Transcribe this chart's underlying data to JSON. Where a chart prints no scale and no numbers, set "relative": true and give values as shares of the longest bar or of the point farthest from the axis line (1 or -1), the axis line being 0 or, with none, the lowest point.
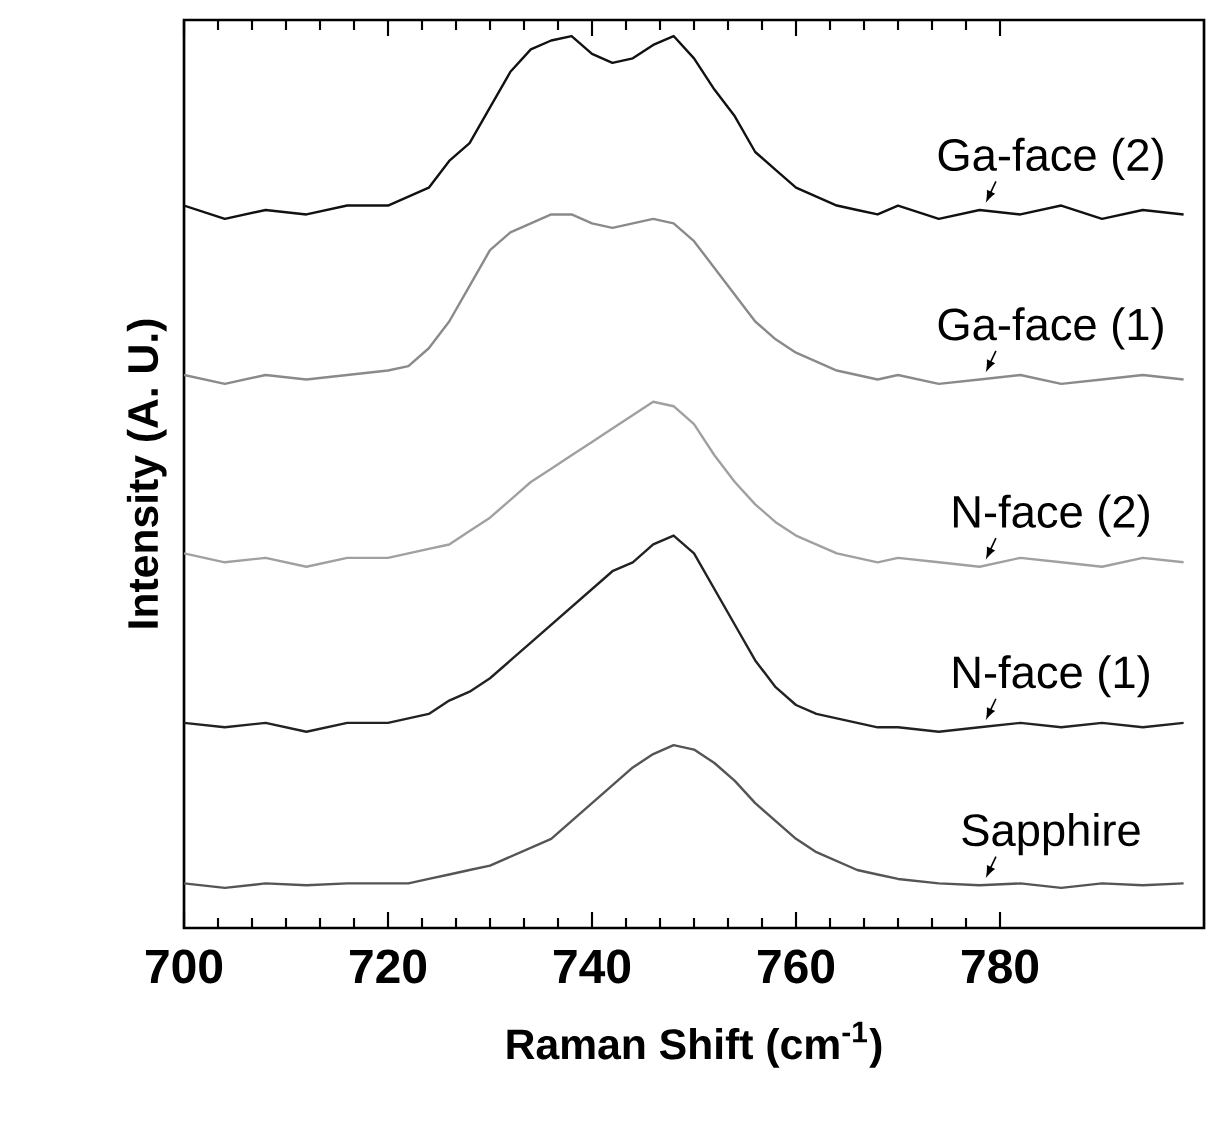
{
  "chart_data": {
    "type": "line",
    "relative": true,
    "xlabel": "Raman Shift  (cm$^{-1}$)",
    "ylabel": "Intensity  (A. U.)",
    "xlim": [
      700,
      800
    ],
    "xticks": [
      700,
      720,
      740,
      760,
      780
    ],
    "grid": false,
    "marker": "none",
    "line_style": "solid",
    "x": [
      700,
      704,
      708,
      712,
      716,
      720,
      722,
      724,
      726,
      728,
      730,
      732,
      734,
      736,
      738,
      740,
      742,
      744,
      746,
      748,
      750,
      752,
      754,
      756,
      758,
      760,
      762,
      764,
      766,
      768,
      770,
      774,
      778,
      782,
      786,
      790,
      794,
      798
    ],
    "series": [
      {
        "name": "Ga-face (2)",
        "color": "#111111",
        "values": [
          0.81,
          0.795,
          0.805,
          0.8,
          0.81,
          0.81,
          0.82,
          0.83,
          0.86,
          0.88,
          0.92,
          0.96,
          0.985,
          0.995,
          1.0,
          0.98,
          0.97,
          0.975,
          0.99,
          1.0,
          0.975,
          0.94,
          0.91,
          0.87,
          0.85,
          0.83,
          0.82,
          0.81,
          0.805,
          0.8,
          0.81,
          0.795,
          0.805,
          0.8,
          0.81,
          0.795,
          0.805,
          0.8
        ]
      },
      {
        "name": "Ga-face (1)",
        "color": "#8a8a8a",
        "values": [
          0.62,
          0.61,
          0.62,
          0.615,
          0.62,
          0.625,
          0.63,
          0.65,
          0.68,
          0.72,
          0.76,
          0.78,
          0.79,
          0.8,
          0.8,
          0.79,
          0.785,
          0.79,
          0.795,
          0.79,
          0.77,
          0.74,
          0.71,
          0.68,
          0.66,
          0.645,
          0.635,
          0.625,
          0.62,
          0.615,
          0.62,
          0.61,
          0.615,
          0.62,
          0.61,
          0.615,
          0.62,
          0.615
        ]
      },
      {
        "name": "N-face (2)",
        "color": "#a0a0a0",
        "values": [
          0.42,
          0.41,
          0.415,
          0.405,
          0.415,
          0.415,
          0.42,
          0.425,
          0.43,
          0.445,
          0.46,
          0.48,
          0.5,
          0.515,
          0.53,
          0.545,
          0.56,
          0.575,
          0.59,
          0.585,
          0.565,
          0.53,
          0.5,
          0.475,
          0.455,
          0.44,
          0.43,
          0.42,
          0.415,
          0.41,
          0.415,
          0.41,
          0.405,
          0.415,
          0.41,
          0.405,
          0.415,
          0.41
        ]
      },
      {
        "name": "N-face (1)",
        "color": "#222222",
        "values": [
          0.23,
          0.225,
          0.23,
          0.22,
          0.23,
          0.23,
          0.235,
          0.24,
          0.255,
          0.265,
          0.28,
          0.3,
          0.32,
          0.34,
          0.36,
          0.38,
          0.4,
          0.41,
          0.43,
          0.44,
          0.42,
          0.38,
          0.34,
          0.3,
          0.27,
          0.25,
          0.24,
          0.235,
          0.23,
          0.225,
          0.225,
          0.22,
          0.225,
          0.23,
          0.225,
          0.23,
          0.225,
          0.23
        ]
      },
      {
        "name": "Sapphire",
        "color": "#555555",
        "values": [
          0.05,
          0.045,
          0.05,
          0.048,
          0.05,
          0.05,
          0.05,
          0.055,
          0.06,
          0.065,
          0.07,
          0.08,
          0.09,
          0.1,
          0.12,
          0.14,
          0.16,
          0.18,
          0.195,
          0.205,
          0.2,
          0.185,
          0.165,
          0.14,
          0.12,
          0.1,
          0.085,
          0.075,
          0.065,
          0.06,
          0.055,
          0.05,
          0.048,
          0.05,
          0.045,
          0.05,
          0.048,
          0.05
        ]
      }
    ]
  }
}
